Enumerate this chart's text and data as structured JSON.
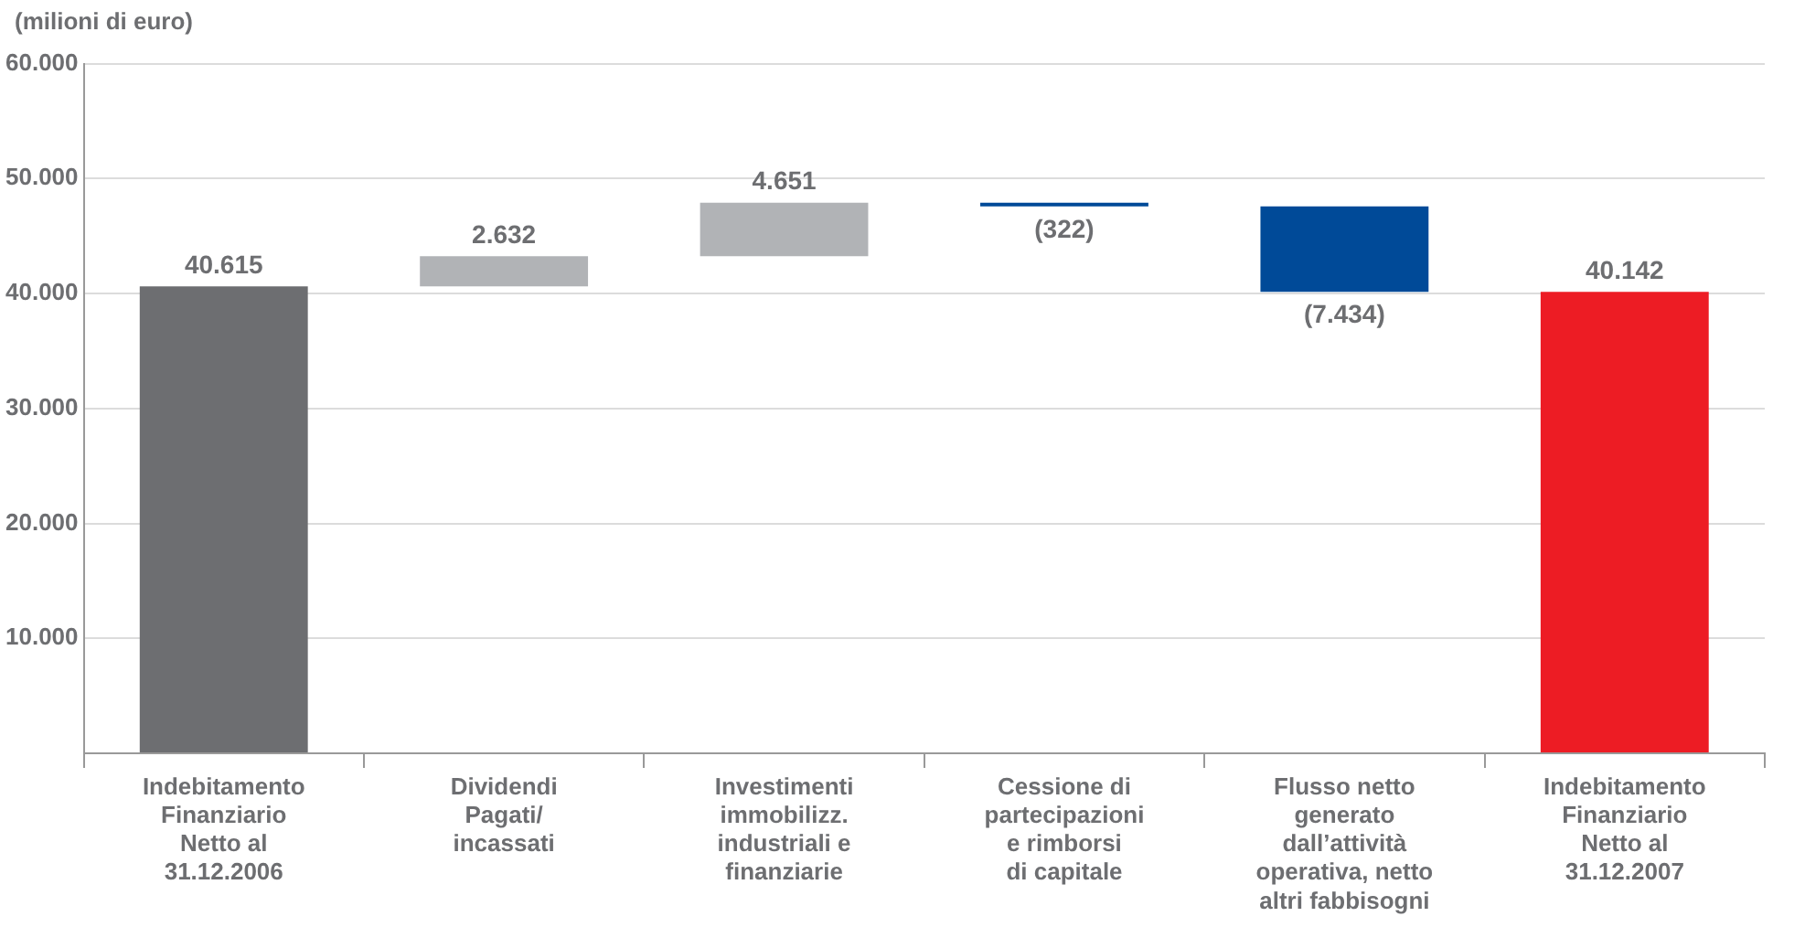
{
  "chart_data": {
    "type": "bar",
    "ylabel": "(milioni di euro)",
    "categories": [
      "Indebitamento\nFinanziario\nNetto al\n31.12.2006",
      "Dividendi\nPagati/\nincassati",
      "Investimenti\nimmobilizz.\nindustriali e\nfinanziarie",
      "Cessione di\npartecipazioni\ne rimborsi\ndi capitale",
      "Flusso netto\ngenerato\ndall’attività\noperativa, netto\naltri fabbisogni",
      "Indebitamento\nFinanziario\nNetto al\n31.12.2007"
    ],
    "values": [
      40615,
      2632,
      4651,
      -322,
      -7434,
      40142
    ],
    "base": [
      0,
      40615,
      43247,
      47898,
      47576,
      0
    ],
    "colors": [
      "#6d6e71",
      "#b1b3b6",
      "#b1b3b6",
      "#004a98",
      "#004a98",
      "#ed1c24"
    ],
    "value_labels": [
      "40.615",
      "2.632",
      "4.651",
      "(322)",
      "(7.434)",
      "40.142"
    ],
    "ylim": [
      0,
      60000
    ],
    "yticks": [
      {
        "value": 0,
        "label": null
      },
      {
        "value": 10000,
        "label": "10.000"
      },
      {
        "value": 20000,
        "label": "20.000"
      },
      {
        "value": 30000,
        "label": "30.000"
      },
      {
        "value": 40000,
        "label": "40.000"
      },
      {
        "value": 50000,
        "label": "50.000"
      },
      {
        "value": 60000,
        "label": "60.000"
      }
    ],
    "grid": "y",
    "legend": false
  }
}
